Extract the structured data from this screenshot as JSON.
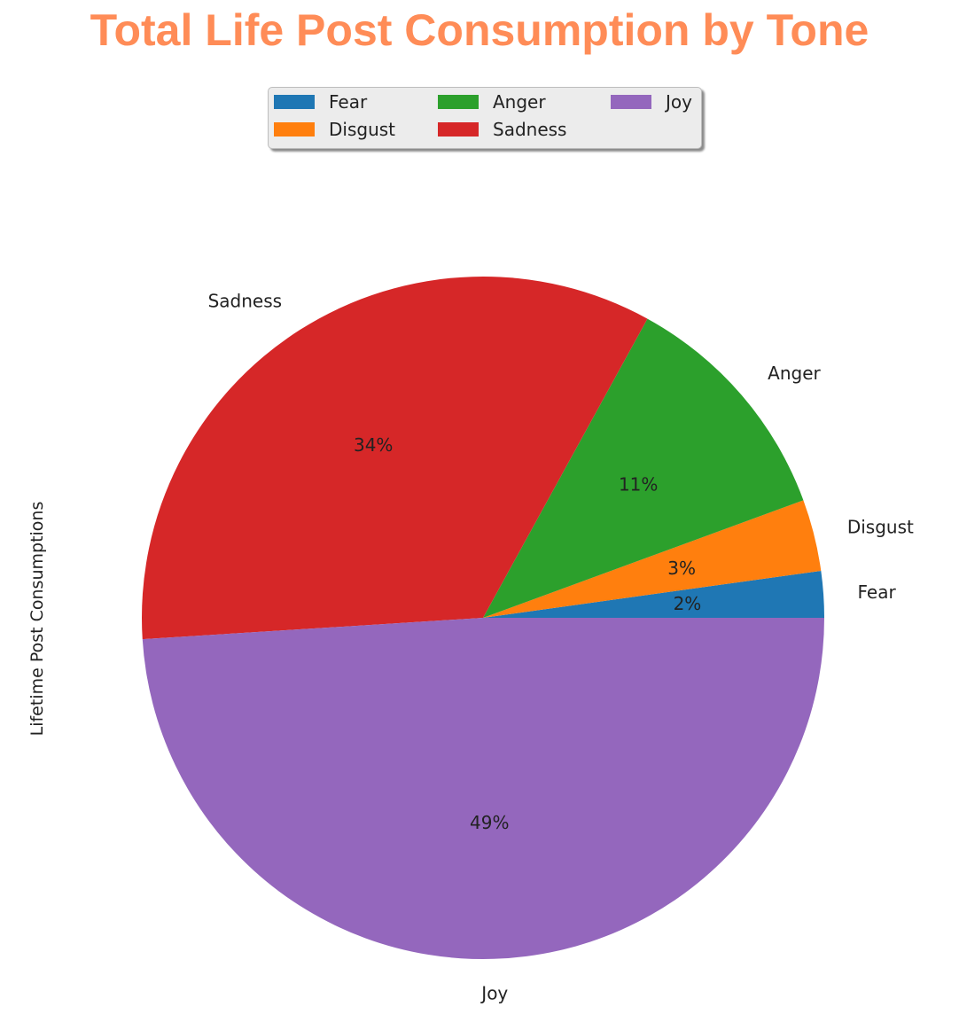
{
  "title": "Total Life Post Consumption by Tone",
  "title_color": "#ff8c57",
  "chart_data": {
    "type": "pie",
    "title": "Total Life Post Consumption by Tone",
    "ylabel": "Lifetime Post Consumptions",
    "start_angle_deg": 0,
    "direction": "counterclockwise",
    "legend_placement": "top-center",
    "legend_columns": 3,
    "slices": [
      {
        "label": "Fear",
        "percent": 2.2,
        "pct_label": "2%",
        "color": "#1f77b4"
      },
      {
        "label": "Disgust",
        "percent": 3.4,
        "pct_label": "3%",
        "color": "#ff7f0e"
      },
      {
        "label": "Anger",
        "percent": 11.4,
        "pct_label": "11%",
        "color": "#2ca02c"
      },
      {
        "label": "Sadness",
        "percent": 34.0,
        "pct_label": "34%",
        "color": "#d62728"
      },
      {
        "label": "Joy",
        "percent": 49.0,
        "pct_label": "49%",
        "color": "#9467bd"
      }
    ]
  }
}
